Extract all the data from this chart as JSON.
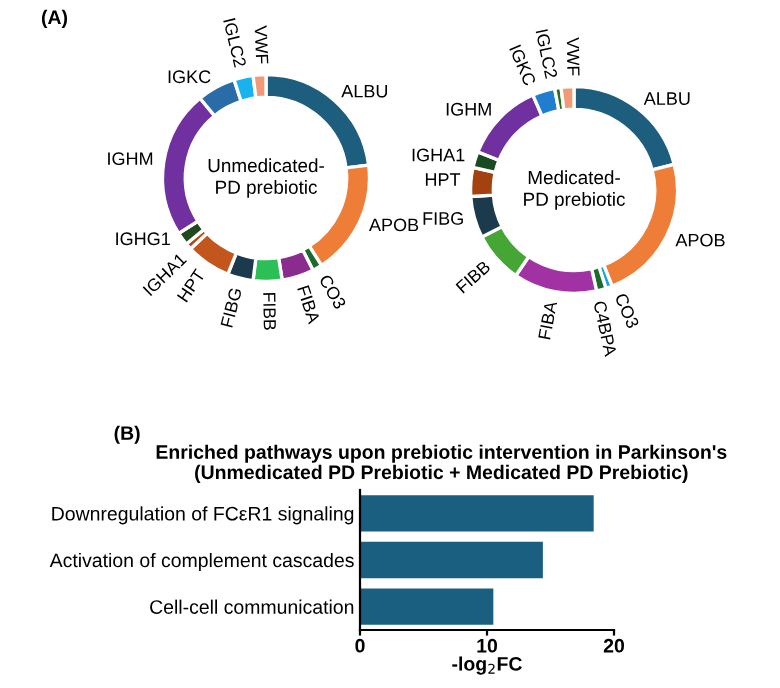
{
  "chart_data": [
    {
      "type": "donut",
      "title": "Unmedicated-\nPD prebiotic",
      "annotations": [
        "(A)"
      ],
      "categories": [
        "ALBU",
        "APOB",
        "CO3",
        "FIBA",
        "FIBB",
        "FIBG",
        "HPT",
        "IGHA1",
        "IGHG1",
        "IGHM",
        "IGKC",
        "IGLC2",
        "VWF"
      ],
      "values": [
        23,
        18,
        1.5,
        5,
        4.5,
        4,
        7,
        1,
        2,
        23,
        6,
        3,
        2
      ],
      "colors": [
        "#1d5e7e",
        "#ee7d37",
        "#1c6b2e",
        "#8a2c8e",
        "#2bbf55",
        "#1b3a4c",
        "#c2561d",
        "#b04a1a",
        "#1f4a1f",
        "#7030a0",
        "#2a6ca8",
        "#1ab2ee",
        "#f09a78"
      ]
    },
    {
      "type": "donut",
      "title": "Medicated-\nPD prebiotic",
      "categories": [
        "ALBU",
        "APOB",
        "CO3",
        "C4BPA",
        "FIBA",
        "FIBB",
        "FIBG",
        "HPT",
        "IGHA1",
        "IGHM",
        "IGKC",
        "IGLC2",
        "VWF"
      ],
      "values": [
        21,
        23,
        1,
        1.5,
        13,
        8,
        6.5,
        4.5,
        2.5,
        12.5,
        3.5,
        1,
        2
      ],
      "colors": [
        "#1d5e7e",
        "#ee7d37",
        "#1aa2e2",
        "#1c6b2e",
        "#a232a4",
        "#45a535",
        "#1b3a4c",
        "#a3420f",
        "#1a4a22",
        "#7030a0",
        "#1f7ed0",
        "#2d6b22",
        "#f09a78"
      ]
    },
    {
      "type": "bar",
      "orientation": "horizontal",
      "title": "Enriched pathways upon prebiotic intervention in Parkinson's\n(Unmedicated PD Prebiotic + Medicated PD Prebiotic)",
      "annotations": [
        "(B)"
      ],
      "xlabel": "-log$_{2}$FC",
      "categories": [
        "Downregulation of FCεR1 signaling",
        "Activation of complement cascades",
        "Cell-cell communication"
      ],
      "values": [
        18.4,
        14.4,
        10.5
      ],
      "color": "#1a5f80",
      "xlim": [
        0,
        20
      ],
      "xticks": [
        0,
        10,
        20
      ],
      "grid": false,
      "legend": false
    }
  ]
}
